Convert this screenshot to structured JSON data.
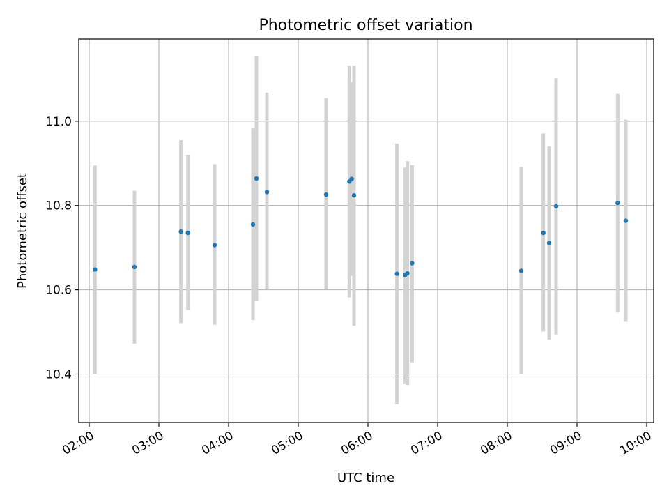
{
  "chart_data": {
    "type": "scatter",
    "title": "Photometric offset variation",
    "xlabel": "UTC time",
    "ylabel": "Photometric offset",
    "grid": true,
    "x_type": "time",
    "xlim": [
      "01:51",
      "10:06"
    ],
    "ylim": [
      10.285,
      11.195
    ],
    "x_ticks": [
      "02:00",
      "03:00",
      "04:00",
      "05:00",
      "06:00",
      "07:00",
      "08:00",
      "09:00",
      "10:00"
    ],
    "y_ticks": [
      10.4,
      10.6,
      10.8,
      11.0
    ],
    "y_tick_labels": [
      "10.4",
      "10.6",
      "10.8",
      "11.0"
    ],
    "marker_color": "#1f77b4",
    "errorbar_color": "#d3d3d3",
    "points": [
      {
        "x": "02:05",
        "y": 10.648,
        "yerr": [
          10.4,
          10.895
        ]
      },
      {
        "x": "02:39",
        "y": 10.654,
        "yerr": [
          10.472,
          10.835
        ]
      },
      {
        "x": "03:19",
        "y": 10.738,
        "yerr": [
          10.521,
          10.955
        ]
      },
      {
        "x": "03:25",
        "y": 10.735,
        "yerr": [
          10.552,
          10.92
        ]
      },
      {
        "x": "03:48",
        "y": 10.706,
        "yerr": [
          10.517,
          10.898
        ]
      },
      {
        "x": "04:21",
        "y": 10.755,
        "yerr": [
          10.528,
          10.983
        ]
      },
      {
        "x": "04:24",
        "y": 10.864,
        "yerr": [
          10.573,
          11.155
        ]
      },
      {
        "x": "04:33",
        "y": 10.832,
        "yerr": [
          10.601,
          11.068
        ]
      },
      {
        "x": "05:24",
        "y": 10.826,
        "yerr": [
          10.601,
          11.055
        ]
      },
      {
        "x": "05:44",
        "y": 10.857,
        "yerr": [
          10.582,
          11.132
        ]
      },
      {
        "x": "05:46",
        "y": 10.863,
        "yerr": [
          10.633,
          11.093
        ]
      },
      {
        "x": "05:48",
        "y": 10.824,
        "yerr": [
          10.515,
          11.132
        ]
      },
      {
        "x": "06:25",
        "y": 10.638,
        "yerr": [
          10.328,
          10.947
        ]
      },
      {
        "x": "06:32",
        "y": 10.635,
        "yerr": [
          10.376,
          10.89
        ]
      },
      {
        "x": "06:34",
        "y": 10.639,
        "yerr": [
          10.374,
          10.905
        ]
      },
      {
        "x": "06:38",
        "y": 10.663,
        "yerr": [
          10.428,
          10.896
        ]
      },
      {
        "x": "08:12",
        "y": 10.645,
        "yerr": [
          10.4,
          10.892
        ]
      },
      {
        "x": "08:31",
        "y": 10.735,
        "yerr": [
          10.501,
          10.971
        ]
      },
      {
        "x": "08:36",
        "y": 10.711,
        "yerr": [
          10.482,
          10.94
        ]
      },
      {
        "x": "08:42",
        "y": 10.798,
        "yerr": [
          10.494,
          11.102
        ]
      },
      {
        "x": "09:35",
        "y": 10.806,
        "yerr": [
          10.546,
          11.065
        ]
      },
      {
        "x": "09:42",
        "y": 10.764,
        "yerr": [
          10.524,
          11.004
        ]
      }
    ]
  }
}
